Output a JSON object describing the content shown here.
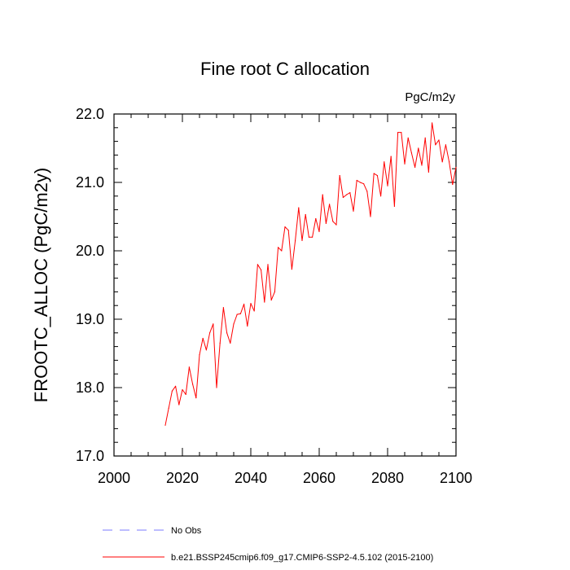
{
  "chart_data": {
    "type": "line",
    "title": "Fine root C allocation",
    "units": "PgC/m2y",
    "ylabel": "FROOTC_ALLOC  (PgC/m2y)",
    "xlabel": "",
    "xlim": [
      2000,
      2100
    ],
    "ylim": [
      17.0,
      22.0
    ],
    "x_ticks": [
      2000,
      2020,
      2040,
      2060,
      2080,
      2100
    ],
    "x_tick_labels": [
      "2000",
      "2020",
      "2040",
      "2060",
      "2080",
      "2100"
    ],
    "y_ticks": [
      17.0,
      18.0,
      19.0,
      20.0,
      21.0,
      22.0
    ],
    "y_tick_labels": [
      "17.0",
      "18.0",
      "19.0",
      "20.0",
      "21.0",
      "22.0"
    ],
    "grid": false,
    "legend": [
      {
        "label": "No Obs",
        "color": "#7b7bff",
        "style": "dashed"
      },
      {
        "label": "b.e21.BSSP245cmip6.f09_g17.CMIP6-SSP2-4.5.102 (2015-2100)",
        "color": "#ff0000",
        "style": "solid"
      }
    ],
    "series": [
      {
        "name": "b.e21.BSSP245cmip6.f09_g17.CMIP6-SSP2-4.5.102 (2015-2100)",
        "color": "#ff0000",
        "x": [
          2015,
          2016,
          2017,
          2018,
          2019,
          2020,
          2021,
          2022,
          2023,
          2024,
          2025,
          2026,
          2027,
          2028,
          2029,
          2030,
          2031,
          2032,
          2033,
          2034,
          2035,
          2036,
          2037,
          2038,
          2039,
          2040,
          2041,
          2042,
          2043,
          2044,
          2045,
          2046,
          2047,
          2048,
          2049,
          2050,
          2051,
          2052,
          2053,
          2054,
          2055,
          2056,
          2057,
          2058,
          2059,
          2060,
          2061,
          2062,
          2063,
          2064,
          2065,
          2066,
          2067,
          2068,
          2069,
          2070,
          2071,
          2072,
          2073,
          2074,
          2075,
          2076,
          2077,
          2078,
          2079,
          2080,
          2081,
          2082,
          2083,
          2084,
          2085,
          2086,
          2087,
          2088,
          2089,
          2090,
          2091,
          2092,
          2093,
          2094,
          2095,
          2096,
          2097,
          2098,
          2099,
          2100
        ],
        "values": [
          17.45,
          17.7,
          17.95,
          18.02,
          17.75,
          17.97,
          17.9,
          18.3,
          18.05,
          17.85,
          18.48,
          18.72,
          18.55,
          18.8,
          18.93,
          18.0,
          18.65,
          19.17,
          18.8,
          18.65,
          18.93,
          19.07,
          19.08,
          19.22,
          18.9,
          19.23,
          19.12,
          19.8,
          19.72,
          19.25,
          19.8,
          19.28,
          19.4,
          20.05,
          20.0,
          20.35,
          20.3,
          19.73,
          20.15,
          20.63,
          20.15,
          20.53,
          20.2,
          20.2,
          20.47,
          20.28,
          20.82,
          20.4,
          20.68,
          20.43,
          20.38,
          21.1,
          20.78,
          20.82,
          20.85,
          20.58,
          21.03,
          21.0,
          20.98,
          20.87,
          20.5,
          21.13,
          21.1,
          20.8,
          21.3,
          20.95,
          21.38,
          20.65,
          21.73,
          21.73,
          21.27,
          21.65,
          21.43,
          21.22,
          21.5,
          21.25,
          21.65,
          21.15,
          21.87,
          21.55,
          21.62,
          21.3,
          21.55,
          21.3,
          20.97,
          21.22
        ]
      }
    ]
  }
}
